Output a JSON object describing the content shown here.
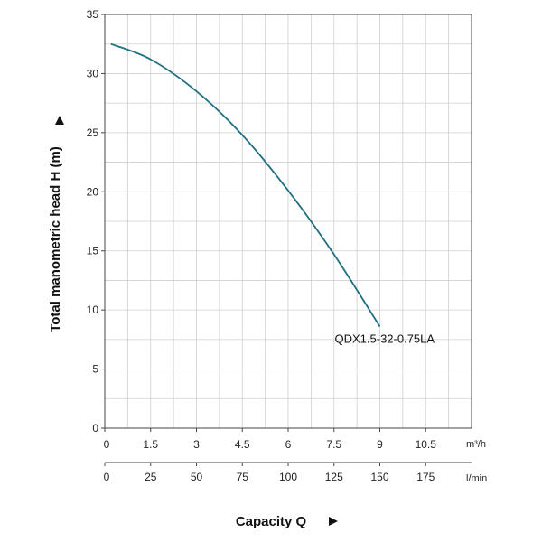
{
  "chart_data": {
    "type": "line",
    "ylabel": "Total manometric head H (m)",
    "xlabel": "Capacity Q",
    "x_unit_primary": "m³/h",
    "x_unit_secondary": "l/min",
    "xlim": [
      0,
      12
    ],
    "ylim": [
      0,
      35
    ],
    "x_ticks": [
      "0",
      "1.5",
      "3",
      "4.5",
      "6",
      "7.5",
      "9",
      "10.5"
    ],
    "x_tick_values": [
      0,
      1.5,
      3,
      4.5,
      6,
      7.5,
      9,
      10.5
    ],
    "x2_ticks": [
      "0",
      "25",
      "50",
      "75",
      "100",
      "125",
      "150",
      "175"
    ],
    "x2_tick_values": [
      0,
      25,
      50,
      75,
      100,
      125,
      150,
      175
    ],
    "y_ticks": [
      "0",
      "5",
      "10",
      "15",
      "20",
      "25",
      "30",
      "35"
    ],
    "y_tick_values": [
      0,
      5,
      10,
      15,
      20,
      25,
      30,
      35
    ],
    "grid": true,
    "series": [
      {
        "name": "QDX1.5-32-0.75LA",
        "color": "#1f7080",
        "x": [
          0.2,
          1.5,
          3,
          4.5,
          6,
          7.5,
          9
        ],
        "y": [
          32.5,
          31.2,
          28.5,
          24.8,
          20.1,
          14.7,
          8.6
        ]
      }
    ]
  }
}
